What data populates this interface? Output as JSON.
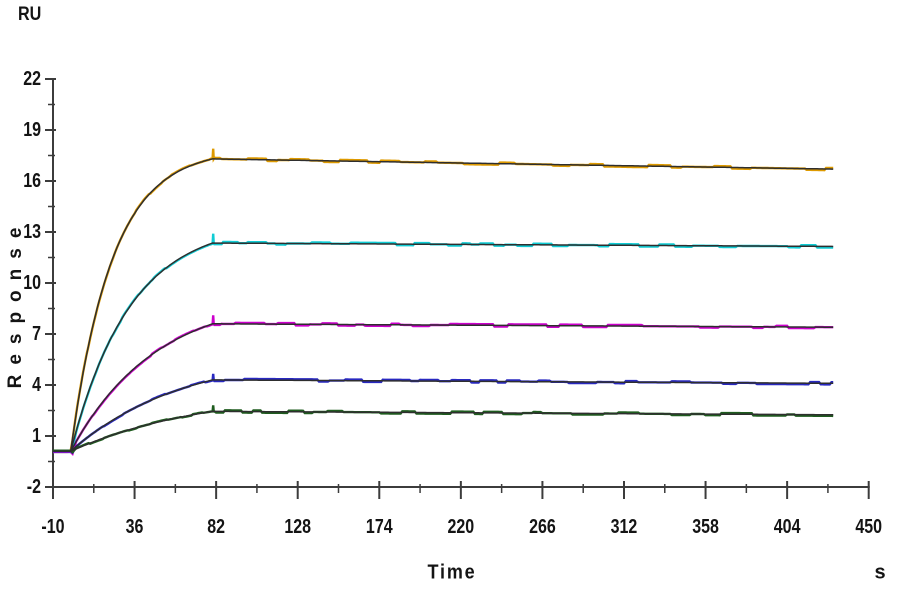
{
  "labels": {
    "y_unit": "RU",
    "y_title": "Response",
    "x_title": "Time",
    "x_unit": "s"
  },
  "chart_data": {
    "type": "line",
    "title": "",
    "description": "SPR sensorgram: five concentration series with overlaid kinetic fit lines, association 0-80 s, slow dissociation to 430 s",
    "xlabel": "Time",
    "x_unit": "s",
    "ylabel": "Response",
    "y_unit": "RU",
    "xlim": [
      -10,
      450
    ],
    "ylim": [
      -2,
      22
    ],
    "x_ticks": [
      -10,
      36,
      82,
      128,
      174,
      220,
      266,
      312,
      358,
      404,
      450
    ],
    "y_ticks": [
      -2,
      1,
      4,
      7,
      10,
      13,
      16,
      19,
      22
    ],
    "x_minor_step": 23,
    "y_minor_step": 1.5,
    "grid": false,
    "legend": "none",
    "baseline_ru": 0.1,
    "injection_start_s": 0,
    "injection_end_s": 80,
    "curve_end_s": 430,
    "axis_color": "#3c3c3c",
    "fit_color": "#2e2e2e",
    "series": [
      {
        "name": "concentration-1-highest",
        "color": "#de9a00",
        "response_at_injection_end": 17.3,
        "response_at_curve_end": 16.7,
        "k_obs": 0.043,
        "spike_ru": 0.6,
        "dip_ru": 0.2
      },
      {
        "name": "concentration-2",
        "color": "#10ccd4",
        "response_at_injection_end": 12.35,
        "response_at_curve_end": 12.15,
        "k_obs": 0.03,
        "spike_ru": 0.55,
        "dip_ru": 0.3
      },
      {
        "name": "concentration-3",
        "color": "#cc00cc",
        "response_at_injection_end": 7.6,
        "response_at_curve_end": 7.4,
        "k_obs": 0.021,
        "spike_ru": 0.5,
        "dip_ru": 0.5
      },
      {
        "name": "concentration-4",
        "color": "#2828c0",
        "response_at_injection_end": 4.3,
        "response_at_curve_end": 4.1,
        "k_obs": 0.016,
        "spike_ru": 0.35,
        "dip_ru": 0.25
      },
      {
        "name": "concentration-5-lowest",
        "color": "#1f5c1f",
        "response_at_injection_end": 2.45,
        "response_at_curve_end": 2.25,
        "k_obs": 0.013,
        "spike_ru": 0.35,
        "dip_ru": 0.2
      }
    ]
  }
}
